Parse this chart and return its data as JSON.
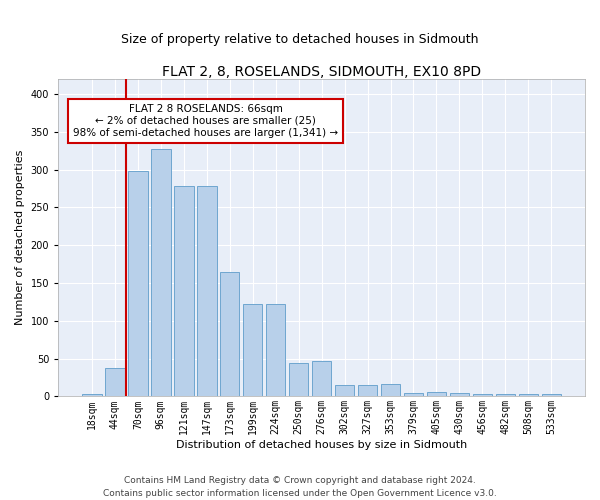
{
  "title": "FLAT 2, 8, ROSELANDS, SIDMOUTH, EX10 8PD",
  "subtitle": "Size of property relative to detached houses in Sidmouth",
  "xlabel": "Distribution of detached houses by size in Sidmouth",
  "ylabel": "Number of detached properties",
  "categories": [
    "18sqm",
    "44sqm",
    "70sqm",
    "96sqm",
    "121sqm",
    "147sqm",
    "173sqm",
    "199sqm",
    "224sqm",
    "250sqm",
    "276sqm",
    "302sqm",
    "327sqm",
    "353sqm",
    "379sqm",
    "405sqm",
    "430sqm",
    "456sqm",
    "482sqm",
    "508sqm",
    "533sqm"
  ],
  "values": [
    3,
    38,
    298,
    328,
    278,
    278,
    165,
    122,
    122,
    44,
    47,
    15,
    15,
    17,
    5,
    6,
    5,
    3,
    3,
    3,
    3
  ],
  "bar_color": "#b8d0ea",
  "bar_edge_color": "#6ea6d0",
  "bar_width": 0.85,
  "ylim": [
    0,
    420
  ],
  "yticks": [
    0,
    50,
    100,
    150,
    200,
    250,
    300,
    350,
    400
  ],
  "vline_x_index": 1.5,
  "vline_color": "#cc0000",
  "annotation_box_text": "FLAT 2 8 ROSELANDS: 66sqm\n← 2% of detached houses are smaller (25)\n98% of semi-detached houses are larger (1,341) →",
  "annotation_box_color": "#cc0000",
  "annotation_box_facecolor": "white",
  "background_color": "#e8eef8",
  "footer_text": "Contains HM Land Registry data © Crown copyright and database right 2024.\nContains public sector information licensed under the Open Government Licence v3.0.",
  "title_fontsize": 10,
  "subtitle_fontsize": 9,
  "axis_label_fontsize": 8,
  "tick_fontsize": 7,
  "annotation_fontsize": 7.5,
  "footer_fontsize": 6.5
}
